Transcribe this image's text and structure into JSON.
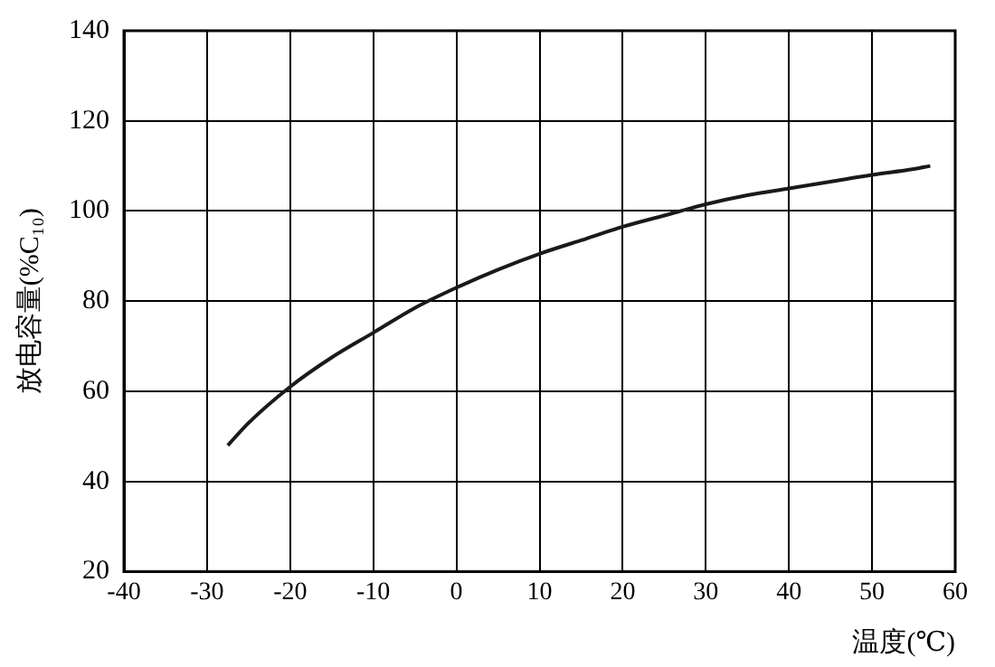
{
  "chart_data": {
    "type": "line",
    "xlabel": "温度(℃)",
    "ylabel": "放电容量(%C₁₀)",
    "x": [
      -27.5,
      -25,
      -20,
      -15,
      -10,
      -5,
      0,
      5,
      10,
      15,
      20,
      25,
      30,
      35,
      40,
      45,
      50,
      55,
      57
    ],
    "series": [
      {
        "color": "#1a1a1a",
        "values": [
          48,
          53,
          61,
          67.5,
          73,
          78.5,
          83,
          87,
          90.5,
          93.5,
          96.5,
          99,
          101.5,
          103.5,
          105,
          106.5,
          108,
          109.3,
          110
        ]
      }
    ],
    "xlim": [
      -40,
      60
    ],
    "xticks": [
      -40,
      -30,
      -20,
      -10,
      0,
      10,
      20,
      30,
      40,
      50,
      60
    ],
    "ylim": [
      20,
      140
    ],
    "yticks": [
      20,
      40,
      60,
      80,
      100,
      120,
      140
    ],
    "grid": true,
    "legend": false,
    "marker": "none",
    "line_style": "solid"
  }
}
